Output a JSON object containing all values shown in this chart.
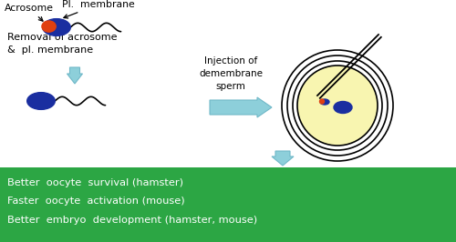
{
  "bg_color": "#ffffff",
  "green_box_color": "#2ca644",
  "green_box_text_color": "#ffffff",
  "green_box_lines": [
    "Better  oocyte  survival (hamster)",
    "Faster  oocyte  activation (mouse)",
    "Better  embryo  development (hamster, mouse)"
  ],
  "arrow_color": "#8dcfda",
  "arrow_outline": "#70b8c8",
  "sperm_body_color": "#1a2ea0",
  "sperm_acrosome_color": "#e04010",
  "label_acrosome": "Acrosome",
  "label_pl_membrane": "Pl.  membrane",
  "label_removal": "Removal of acrosome\n&  pl. membrane",
  "label_injection": "Injection of\ndemembrane\nsperm",
  "oocyte_fill_color": "#f8f5b0",
  "oocyte_nucleus_color": "#1a2ea0"
}
